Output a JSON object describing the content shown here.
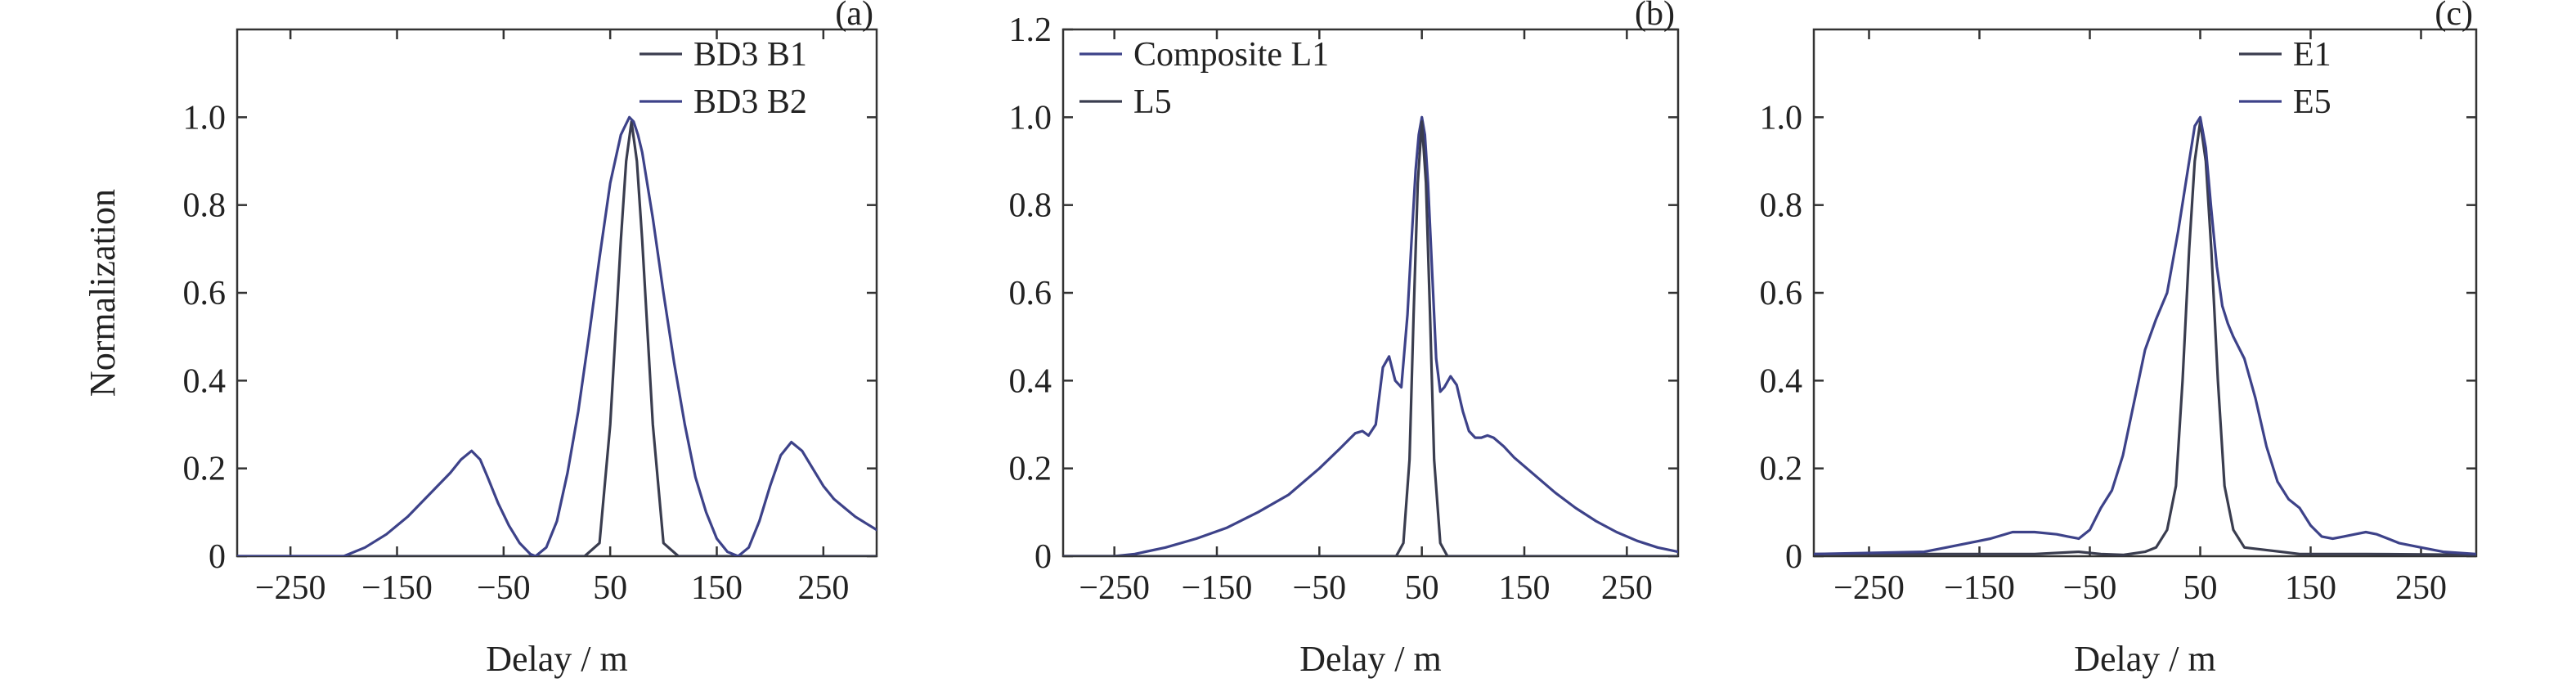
{
  "chart_data": [
    {
      "type": "line",
      "panel_tag": "(a)",
      "xlabel": "Delay / m",
      "ylabel": "Normalization",
      "xlim": [
        -300,
        300
      ],
      "ylim": [
        0,
        1.2
      ],
      "xticks": [
        -250,
        -150,
        -50,
        50,
        150,
        250
      ],
      "yticks": [
        0,
        0.2,
        0.4,
        0.6,
        0.8,
        1.0
      ],
      "xtick_labels": [
        "−250",
        "−150",
        "−50",
        "50",
        "150",
        "250"
      ],
      "ytick_labels": [
        "0",
        "0.2",
        "0.4",
        "0.6",
        "0.8",
        "1.0"
      ],
      "legend_position": "top-right",
      "series": [
        {
          "name": "BD3 B1",
          "color": "#3a3d4f",
          "x": [
            -300,
            26,
            40,
            50,
            60,
            65,
            70,
            75,
            80,
            90,
            100,
            114,
            300
          ],
          "y": [
            0,
            0,
            0.03,
            0.3,
            0.72,
            0.9,
            0.99,
            0.9,
            0.72,
            0.3,
            0.03,
            0,
            0
          ]
        },
        {
          "name": "BD3 B2",
          "color": "#3d4289",
          "x": [
            -300,
            -200,
            -180,
            -160,
            -140,
            -120,
            -100,
            -90,
            -80,
            -72,
            -65,
            -55,
            -45,
            -35,
            -25,
            -20,
            -10,
            0,
            10,
            20,
            30,
            40,
            50,
            60,
            68,
            72,
            76,
            80,
            90,
            100,
            110,
            120,
            130,
            140,
            150,
            160,
            170,
            180,
            190,
            200,
            210,
            220,
            230,
            240,
            250,
            260,
            270,
            280,
            290,
            300
          ],
          "y": [
            0,
            0,
            0.02,
            0.05,
            0.09,
            0.14,
            0.19,
            0.22,
            0.24,
            0.22,
            0.18,
            0.12,
            0.07,
            0.03,
            0.005,
            0,
            0.02,
            0.08,
            0.19,
            0.33,
            0.5,
            0.68,
            0.85,
            0.96,
            1.0,
            0.99,
            0.96,
            0.92,
            0.77,
            0.6,
            0.44,
            0.3,
            0.18,
            0.1,
            0.04,
            0.01,
            0.0,
            0.02,
            0.08,
            0.16,
            0.23,
            0.26,
            0.24,
            0.2,
            0.16,
            0.13,
            0.11,
            0.09,
            0.075,
            0.06
          ]
        }
      ]
    },
    {
      "type": "line",
      "panel_tag": "(b)",
      "xlabel": "Delay / m",
      "ylabel": "",
      "xlim": [
        -300,
        300
      ],
      "ylim": [
        0,
        1.2
      ],
      "xticks": [
        -250,
        -150,
        -50,
        50,
        150,
        250
      ],
      "yticks": [
        0,
        0.2,
        0.4,
        0.6,
        0.8,
        1.0,
        1.2
      ],
      "xtick_labels": [
        "−250",
        "−150",
        "−50",
        "50",
        "150",
        "250"
      ],
      "ytick_labels": [
        "0",
        "0.2",
        "0.4",
        "0.6",
        "0.8",
        "1.0",
        "1.2"
      ],
      "legend_position": "top-left",
      "series": [
        {
          "name": "Composite L1",
          "color": "#3d4289",
          "x": [
            -300,
            -250,
            -230,
            -200,
            -170,
            -140,
            -110,
            -80,
            -50,
            -30,
            -15,
            -8,
            -2,
            5,
            12,
            18,
            24,
            30,
            36,
            40,
            44,
            47,
            50,
            53,
            56,
            60,
            64,
            68,
            72,
            78,
            84,
            90,
            96,
            102,
            108,
            114,
            120,
            130,
            140,
            160,
            180,
            200,
            220,
            240,
            260,
            280,
            300
          ],
          "y": [
            0,
            0,
            0.005,
            0.02,
            0.04,
            0.065,
            0.1,
            0.14,
            0.2,
            0.245,
            0.28,
            0.285,
            0.275,
            0.3,
            0.43,
            0.455,
            0.4,
            0.385,
            0.55,
            0.72,
            0.88,
            0.96,
            1.0,
            0.96,
            0.85,
            0.65,
            0.45,
            0.375,
            0.385,
            0.41,
            0.39,
            0.33,
            0.285,
            0.27,
            0.27,
            0.275,
            0.27,
            0.25,
            0.225,
            0.185,
            0.145,
            0.11,
            0.08,
            0.055,
            0.035,
            0.02,
            0.01
          ]
        },
        {
          "name": "L5",
          "color": "#3a3d4f",
          "x": [
            -300,
            25,
            32,
            38,
            42,
            46,
            50,
            54,
            58,
            62,
            68,
            75,
            300
          ],
          "y": [
            0,
            0,
            0.03,
            0.22,
            0.55,
            0.85,
            0.99,
            0.85,
            0.55,
            0.22,
            0.03,
            0,
            0
          ]
        }
      ]
    },
    {
      "type": "line",
      "panel_tag": "(c)",
      "xlabel": "Delay / m",
      "ylabel": "",
      "xlim": [
        -300,
        300
      ],
      "ylim": [
        0,
        1.2
      ],
      "xticks": [
        -250,
        -150,
        -50,
        50,
        150,
        250
      ],
      "yticks": [
        0,
        0.2,
        0.4,
        0.6,
        0.8,
        1.0
      ],
      "xtick_labels": [
        "−250",
        "−150",
        "−50",
        "50",
        "150",
        "250"
      ],
      "ytick_labels": [
        "0",
        "0.2",
        "0.4",
        "0.6",
        "0.8",
        "1.0"
      ],
      "legend_position": "top-right",
      "series": [
        {
          "name": "E1",
          "color": "#3a3d4f",
          "x": [
            -300,
            -100,
            -60,
            -40,
            -20,
            0,
            10,
            20,
            28,
            34,
            40,
            45,
            50,
            55,
            60,
            66,
            72,
            80,
            90,
            140,
            200,
            300
          ],
          "y": [
            0.005,
            0.005,
            0.01,
            0.005,
            0.003,
            0.01,
            0.02,
            0.06,
            0.16,
            0.4,
            0.7,
            0.9,
            0.99,
            0.9,
            0.7,
            0.4,
            0.16,
            0.06,
            0.02,
            0.005,
            0.005,
            0.003
          ]
        },
        {
          "name": "E5",
          "color": "#3d4289",
          "x": [
            -300,
            -200,
            -180,
            -160,
            -140,
            -120,
            -100,
            -80,
            -70,
            -60,
            -50,
            -40,
            -30,
            -20,
            -10,
            0,
            10,
            20,
            30,
            40,
            45,
            50,
            55,
            60,
            65,
            70,
            75,
            80,
            90,
            100,
            110,
            120,
            130,
            140,
            150,
            160,
            170,
            180,
            190,
            200,
            210,
            220,
            230,
            250,
            270,
            300
          ],
          "y": [
            0.005,
            0.01,
            0.02,
            0.03,
            0.04,
            0.055,
            0.055,
            0.05,
            0.045,
            0.04,
            0.06,
            0.11,
            0.15,
            0.23,
            0.35,
            0.47,
            0.54,
            0.6,
            0.74,
            0.9,
            0.98,
            1.0,
            0.93,
            0.79,
            0.66,
            0.57,
            0.53,
            0.5,
            0.45,
            0.36,
            0.25,
            0.17,
            0.13,
            0.11,
            0.07,
            0.045,
            0.04,
            0.045,
            0.05,
            0.055,
            0.05,
            0.04,
            0.03,
            0.02,
            0.01,
            0.005
          ]
        }
      ]
    }
  ]
}
